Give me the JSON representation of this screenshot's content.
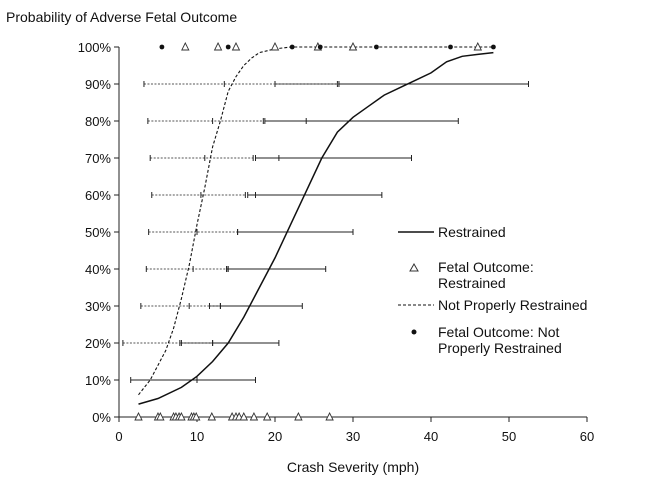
{
  "chart_data": {
    "type": "line",
    "title": "Probability of Adverse Fetal Outcome",
    "xlabel": "Crash Severity (mph)",
    "ylabel": "",
    "xlim": [
      0,
      60
    ],
    "ylim": [
      0,
      100
    ],
    "x_ticks": [
      0,
      10,
      20,
      30,
      40,
      50,
      60
    ],
    "y_ticks": [
      0,
      10,
      20,
      30,
      40,
      50,
      60,
      70,
      80,
      90,
      100
    ],
    "y_tick_labels": [
      "0%",
      "10%",
      "20%",
      "30%",
      "40%",
      "50%",
      "60%",
      "70%",
      "80%",
      "90%",
      "100%"
    ],
    "grid": false,
    "legend_position": "right",
    "legend": [
      {
        "label": "Restrained",
        "marker": "solid-line"
      },
      {
        "label": "Fetal Outcome: Restrained",
        "marker": "open-triangle"
      },
      {
        "label": "Not Properly Restrained",
        "marker": "dashed-line"
      },
      {
        "label": "Fetal Outcome: Not Properly Restrained",
        "marker": "filled-circle"
      }
    ],
    "series": [
      {
        "name": "Restrained",
        "style": "solid",
        "x": [
          2.5,
          5,
          8,
          10,
          12,
          14,
          16,
          18,
          20,
          22,
          24,
          26,
          28,
          30,
          32,
          34,
          36,
          38,
          40,
          42,
          44,
          46,
          48
        ],
        "y": [
          3.5,
          5,
          8,
          11,
          15,
          20,
          27,
          35,
          43,
          52,
          61,
          70,
          77,
          81,
          84,
          87,
          89,
          91,
          93,
          96,
          97.5,
          98,
          98.5
        ]
      },
      {
        "name": "Not Properly Restrained",
        "style": "dashed",
        "x": [
          2.5,
          4,
          6,
          7,
          8,
          9,
          10,
          11,
          12,
          13,
          14,
          15,
          16,
          17,
          18,
          20,
          22,
          25,
          30,
          40,
          48
        ],
        "y": [
          6,
          10,
          18,
          24,
          32,
          41,
          52,
          62,
          73,
          80,
          88,
          92,
          95,
          97,
          98.5,
          99.5,
          100,
          100,
          100,
          100,
          100
        ]
      }
    ],
    "error_bars": [
      {
        "series": "Restrained",
        "y": 10,
        "x_center": 10,
        "low": 1.5,
        "high": 17.5
      },
      {
        "series": "Restrained",
        "y": 20,
        "x_center": 12,
        "low": 7.8,
        "high": 20.5
      },
      {
        "series": "Restrained",
        "y": 30,
        "x_center": 13,
        "low": 11.6,
        "high": 23.5
      },
      {
        "series": "Restrained",
        "y": 40,
        "x_center": 14,
        "low": 13.8,
        "high": 26.5
      },
      {
        "series": "Restrained",
        "y": 50,
        "x_center": 15.2,
        "low": 15.2,
        "high": 30
      },
      {
        "series": "Restrained",
        "y": 60,
        "x_center": 17.5,
        "low": 16.5,
        "high": 33.7
      },
      {
        "series": "Restrained",
        "y": 70,
        "x_center": 20.5,
        "low": 17.5,
        "high": 37.5
      },
      {
        "series": "Restrained",
        "y": 80,
        "x_center": 24,
        "low": 18.7,
        "high": 43.5
      },
      {
        "series": "Restrained",
        "y": 90,
        "x_center": 28,
        "low": 20,
        "high": 52.5
      },
      {
        "series": "Not Properly Restrained",
        "y": 20,
        "x_center": 8,
        "low": 0.5,
        "high": 12
      },
      {
        "series": "Not Properly Restrained",
        "y": 30,
        "x_center": 9,
        "low": 2.8,
        "high": 13
      },
      {
        "series": "Not Properly Restrained",
        "y": 40,
        "x_center": 9.5,
        "low": 3.5,
        "high": 13.8
      },
      {
        "series": "Not Properly Restrained",
        "y": 50,
        "x_center": 10,
        "low": 3.8,
        "high": 15.2
      },
      {
        "series": "Not Properly Restrained",
        "y": 60,
        "x_center": 10.5,
        "low": 4.2,
        "high": 16.2
      },
      {
        "series": "Not Properly Restrained",
        "y": 70,
        "x_center": 11,
        "low": 4,
        "high": 17.2
      },
      {
        "series": "Not Properly Restrained",
        "y": 80,
        "x_center": 12,
        "low": 3.7,
        "high": 18.5
      },
      {
        "series": "Not Properly Restrained",
        "y": 90,
        "x_center": 13.5,
        "low": 3.2,
        "high": 28.2
      }
    ],
    "fetal_outcome_restrained": {
      "x_at_0": [
        2.5,
        5,
        5.3,
        7,
        7.3,
        7.7,
        8,
        9.3,
        9.6,
        9.9,
        11.9,
        14.5,
        15,
        15.4,
        16,
        17.3,
        19,
        23,
        27
      ],
      "x_at_100": [
        8.5,
        12.7,
        15,
        20,
        25.5,
        30,
        46
      ]
    },
    "fetal_outcome_not_properly_restrained": {
      "x_at_100": [
        5.5,
        14,
        22.2,
        25.8,
        33,
        42.5,
        48
      ]
    }
  }
}
